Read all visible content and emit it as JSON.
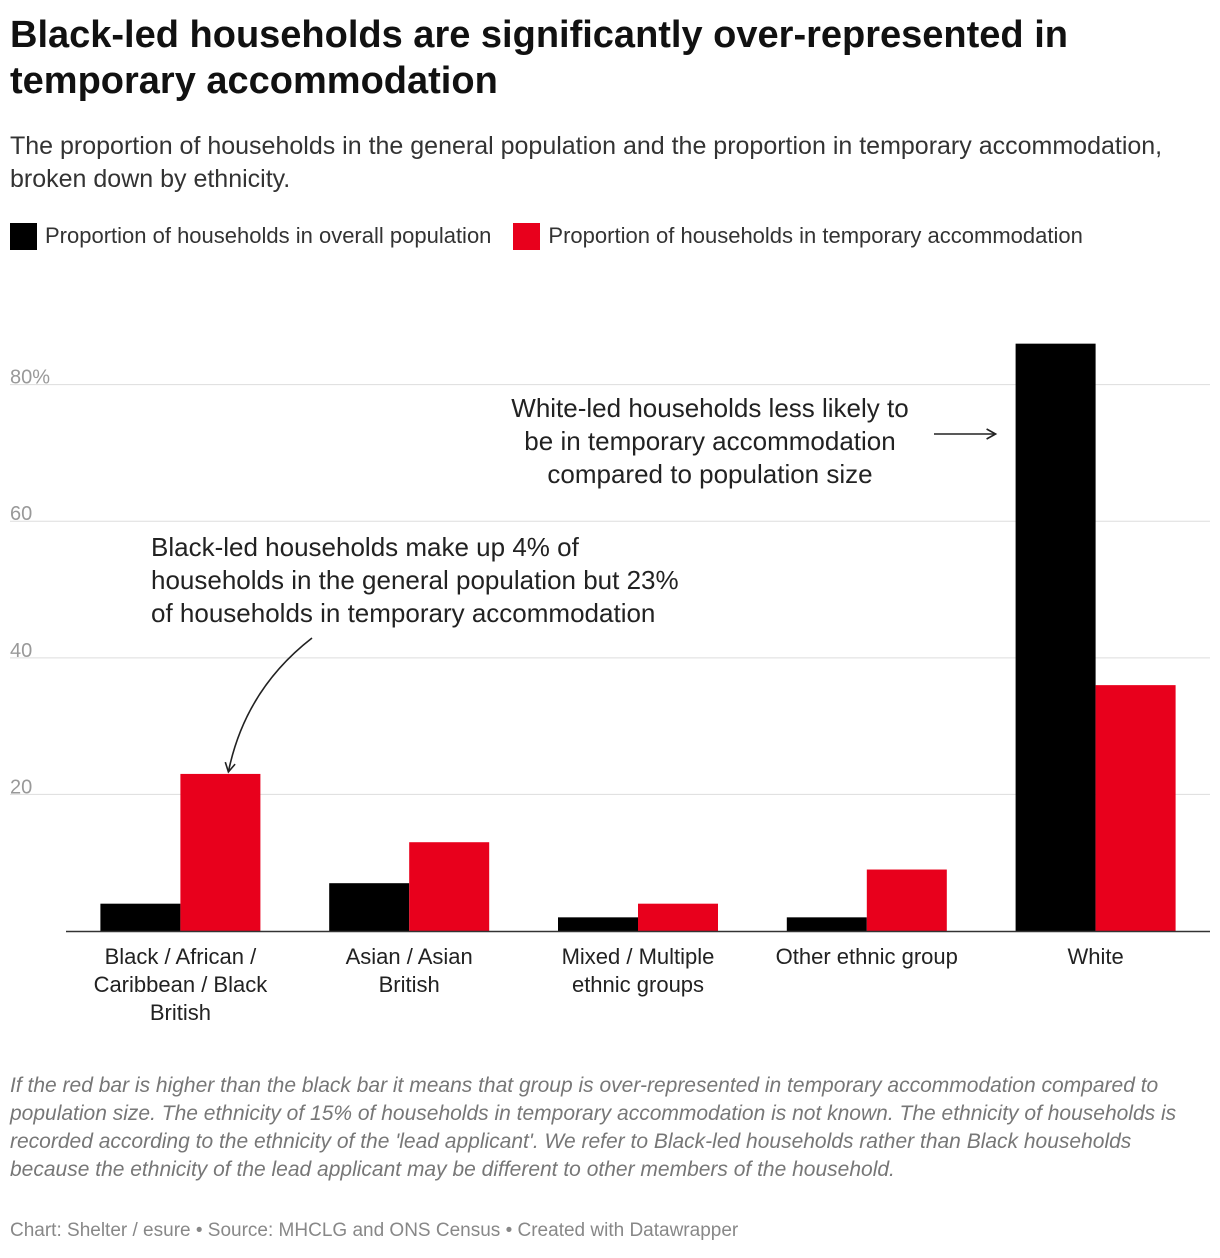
{
  "chart_data": {
    "type": "bar",
    "title": "Black-led households are significantly over-represented in temporary accommodation",
    "subtitle": "The proportion of households in the general population and the proportion in temporary accommodation, broken down by ethnicity.",
    "categories": [
      [
        "Black / African /",
        "Caribbean / Black",
        "British"
      ],
      [
        "Asian / Asian",
        "British"
      ],
      [
        "Mixed / Multiple",
        "ethnic groups"
      ],
      [
        "Other ethnic group"
      ],
      [
        "White"
      ]
    ],
    "series": [
      {
        "name": "Proportion of households in overall population",
        "color": "#000000",
        "values": [
          4,
          7,
          2,
          2,
          86
        ]
      },
      {
        "name": "Proportion of households in temporary accommodation",
        "color": "#e8001c",
        "values": [
          23,
          13,
          4,
          9,
          36
        ]
      }
    ],
    "ylim": [
      0,
      88
    ],
    "yticks": [
      {
        "value": 20,
        "label": "20"
      },
      {
        "value": 40,
        "label": "40"
      },
      {
        "value": 60,
        "label": "60"
      },
      {
        "value": 80,
        "label": "80%"
      }
    ],
    "grid": true,
    "legend": "top-left",
    "annotations": [
      {
        "lines": [
          "White-led households less likely to",
          "be in temporary accommodation",
          "compared to population size"
        ],
        "target_category": 4,
        "target_series": 0
      },
      {
        "lines": [
          "Black-led households make up 4% of",
          "households in the general population but 23%",
          "of households in temporary accommodation"
        ],
        "target_category": 0,
        "target_series": 1
      }
    ]
  },
  "notes": "If the red bar is higher than the black bar it means that group is over-represented in temporary accommodation compared to population size. The ethnicity of 15% of households in temporary accommodation is not known. The ethnicity of households is recorded according to the ethnicity of the 'lead applicant'. We refer to Black-led households rather than Black households because the ethnicity of the lead applicant may be different to other members of the household.",
  "footer": "Chart: Shelter / esure • Source: MHCLG and ONS Census • Created with Datawrapper"
}
